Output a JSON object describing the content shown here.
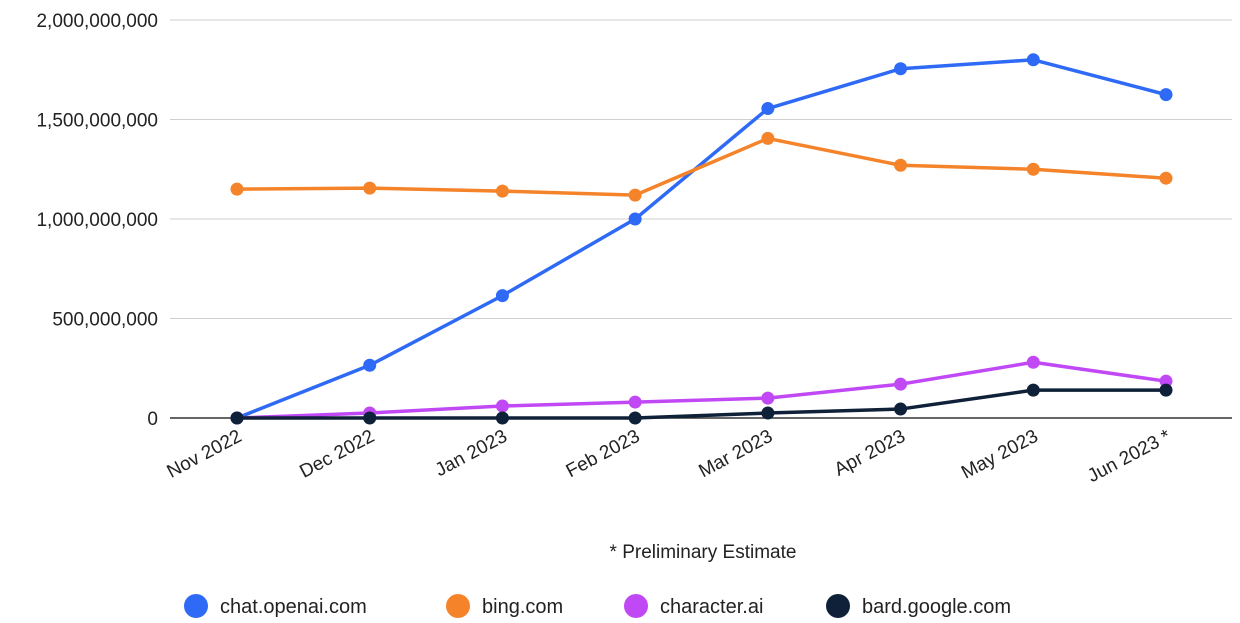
{
  "chart_data": {
    "type": "line",
    "title": "",
    "xlabel": "",
    "ylabel": "",
    "categories": [
      "Nov 2022",
      "Dec 2022",
      "Jan 2023",
      "Feb 2023",
      "Mar 2023",
      "Apr 2023",
      "May 2023",
      "Jun 2023 *"
    ],
    "ylim": [
      0,
      2000000000
    ],
    "yticks": [
      0,
      500000000,
      1000000000,
      1500000000,
      2000000000
    ],
    "ytick_labels": [
      "0",
      "500,000,000",
      "1,000,000,000",
      "1,500,000,000",
      "2,000,000,000"
    ],
    "grid": true,
    "legend_position": "bottom",
    "annotation": "* Preliminary Estimate",
    "series": [
      {
        "name": "chat.openai.com",
        "color": "#2e6af5",
        "values": [
          0,
          265000000,
          615000000,
          1000000000,
          1555000000,
          1755000000,
          1800000000,
          1625000000
        ]
      },
      {
        "name": "bing.com",
        "color": "#f5832a",
        "values": [
          1150000000,
          1155000000,
          1140000000,
          1120000000,
          1405000000,
          1270000000,
          1250000000,
          1205000000
        ]
      },
      {
        "name": "character.ai",
        "color": "#c149f5",
        "values": [
          0,
          25000000,
          60000000,
          80000000,
          100000000,
          170000000,
          280000000,
          185000000
        ]
      },
      {
        "name": "bard.google.com",
        "color": "#0f2138",
        "values": [
          0,
          0,
          0,
          0,
          25000000,
          45000000,
          140000000,
          140000000
        ]
      }
    ]
  }
}
